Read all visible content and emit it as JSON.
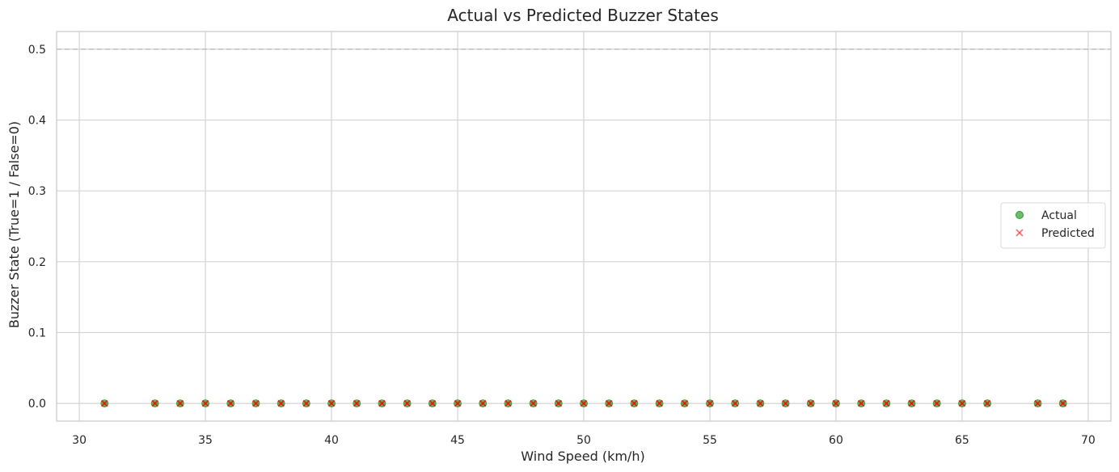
{
  "chart_data": {
    "type": "scatter",
    "title": "Actual vs Predicted Buzzer States",
    "xlabel": "Wind Speed (km/h)",
    "ylabel": "Buzzer State (True=1 / False=0)",
    "xlim": [
      29.1,
      70.9
    ],
    "ylim": [
      -0.025,
      0.525
    ],
    "xticks": [
      30,
      35,
      40,
      45,
      50,
      55,
      60,
      65,
      70
    ],
    "yticks": [
      0.0,
      0.1,
      0.2,
      0.3,
      0.4,
      0.5
    ],
    "ytick_labels": [
      "0.0",
      "0.1",
      "0.2",
      "0.3",
      "0.4",
      "0.5"
    ],
    "grid": true,
    "threshold_line": {
      "y": 0.5,
      "style": "dashed",
      "color": "#bfbfbf"
    },
    "legend": {
      "placement": "center-right"
    },
    "series": [
      {
        "name": "Actual",
        "marker": "circle",
        "color": "#2ca02c",
        "x": [
          31,
          33,
          34,
          35,
          36,
          37,
          38,
          39,
          40,
          41,
          42,
          43,
          44,
          45,
          46,
          47,
          48,
          49,
          50,
          51,
          52,
          53,
          54,
          55,
          56,
          57,
          58,
          59,
          60,
          61,
          62,
          63,
          64,
          65,
          66,
          68,
          69
        ],
        "y": [
          0,
          0,
          0,
          0,
          0,
          0,
          0,
          0,
          0,
          0,
          0,
          0,
          0,
          0,
          0,
          0,
          0,
          0,
          0,
          0,
          0,
          0,
          0,
          0,
          0,
          0,
          0,
          0,
          0,
          0,
          0,
          0,
          0,
          0,
          0,
          0,
          0
        ]
      },
      {
        "name": "Predicted",
        "marker": "x",
        "color": "#ff0000",
        "x": [
          31,
          33,
          34,
          35,
          36,
          37,
          38,
          39,
          40,
          41,
          42,
          43,
          44,
          45,
          46,
          47,
          48,
          49,
          50,
          51,
          52,
          53,
          54,
          55,
          56,
          57,
          58,
          59,
          60,
          61,
          62,
          63,
          64,
          65,
          66,
          68,
          69
        ],
        "y": [
          0,
          0,
          0,
          0,
          0,
          0,
          0,
          0,
          0,
          0,
          0,
          0,
          0,
          0,
          0,
          0,
          0,
          0,
          0,
          0,
          0,
          0,
          0,
          0,
          0,
          0,
          0,
          0,
          0,
          0,
          0,
          0,
          0,
          0,
          0,
          0,
          0
        ]
      }
    ]
  }
}
